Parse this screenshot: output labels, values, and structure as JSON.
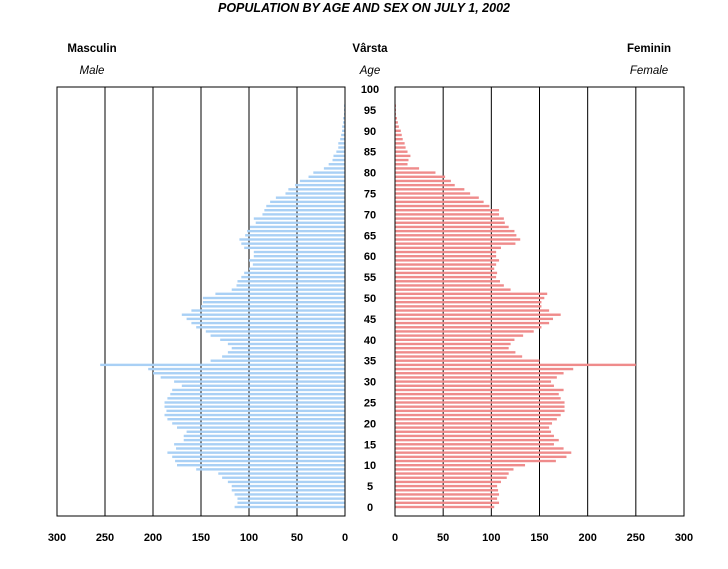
{
  "chart_data": {
    "type": "bar",
    "orientation": "horizontal",
    "layout": "population-pyramid",
    "title": "POPULATION BY AGE AND SEX ON JULY 1, 2002",
    "left_label": "Masculin",
    "left_sublabel": "Male",
    "center_label": "Vârsta",
    "center_sublabel": "Age",
    "right_label": "Feminin",
    "right_sublabel": "Female",
    "age_ticks": [
      "0",
      "5",
      "10",
      "15",
      "20",
      "25",
      "30",
      "35",
      "40",
      "45",
      "50",
      "55",
      "60",
      "65",
      "70",
      "75",
      "80",
      "85",
      "90",
      "95",
      "100"
    ],
    "x_ticks_left": [
      "300",
      "250",
      "200",
      "150",
      "100",
      "50",
      "0"
    ],
    "x_ticks_right": [
      "0",
      "50",
      "100",
      "150",
      "200",
      "250",
      "300"
    ],
    "xlim": [
      0,
      300
    ],
    "ylim": [
      0,
      100
    ],
    "grid": true,
    "series": [
      {
        "name": "Masculin",
        "color": "#a9d0f5",
        "values": [
          115,
          112,
          112,
          115,
          118,
          118,
          122,
          128,
          132,
          155,
          175,
          177,
          180,
          185,
          176,
          178,
          168,
          168,
          165,
          175,
          180,
          185,
          188,
          186,
          188,
          188,
          185,
          182,
          180,
          170,
          178,
          192,
          200,
          205,
          255,
          140,
          128,
          122,
          118,
          122,
          130,
          140,
          145,
          155,
          160,
          165,
          170,
          160,
          150,
          148,
          148,
          135,
          118,
          113,
          112,
          108,
          105,
          100,
          96,
          100,
          95,
          95,
          105,
          108,
          110,
          104,
          102,
          99,
          93,
          95,
          86,
          84,
          82,
          78,
          72,
          62,
          59,
          52,
          47,
          38,
          33,
          22,
          17,
          13,
          12,
          9,
          7,
          7,
          5,
          4,
          3,
          3,
          2,
          2,
          1,
          1,
          1,
          0,
          0,
          0,
          0
        ]
      },
      {
        "name": "Feminin",
        "color": "#ef8b8b",
        "values": [
          103,
          108,
          106,
          108,
          107,
          106,
          110,
          116,
          118,
          123,
          135,
          167,
          178,
          183,
          175,
          165,
          170,
          165,
          162,
          160,
          163,
          168,
          172,
          176,
          176,
          176,
          172,
          170,
          175,
          165,
          162,
          168,
          175,
          185,
          250,
          150,
          132,
          125,
          118,
          120,
          124,
          133,
          144,
          152,
          160,
          164,
          172,
          160,
          152,
          152,
          155,
          158,
          120,
          113,
          109,
          105,
          106,
          103,
          105,
          108,
          105,
          105,
          110,
          125,
          130,
          126,
          124,
          118,
          114,
          113,
          108,
          108,
          98,
          92,
          87,
          78,
          72,
          62,
          58,
          52,
          42,
          25,
          13,
          14,
          16,
          13,
          11,
          10,
          8,
          7,
          6,
          4,
          3,
          2,
          1,
          1,
          1,
          0,
          0,
          0,
          0
        ]
      }
    ]
  }
}
